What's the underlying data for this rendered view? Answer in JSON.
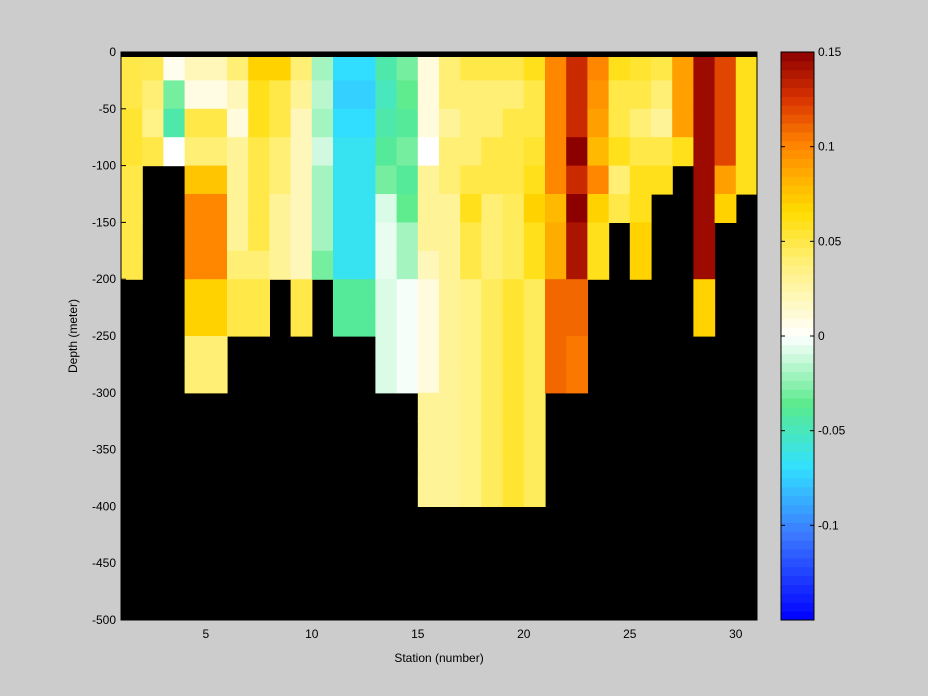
{
  "chart_data": {
    "type": "heatmap",
    "xlabel": "Station (number)",
    "ylabel": "Depth (meter)",
    "xlim": [
      1,
      31
    ],
    "ylim": [
      -500,
      0
    ],
    "x_ticks": [
      5,
      10,
      15,
      20,
      25,
      30
    ],
    "y_ticks": [
      0,
      -50,
      -100,
      -150,
      -200,
      -250,
      -300,
      -350,
      -400,
      -450,
      -500
    ],
    "colorbar": {
      "clim": [
        -0.15,
        0.15
      ],
      "ticks": [
        0.15,
        0.1,
        0.05,
        0,
        -0.05,
        -0.1
      ],
      "tick_labels": [
        "0.15",
        "0.1",
        "0.05",
        "0",
        "-0.05",
        "-0.1"
      ]
    },
    "depth_levels": [
      -12.5,
      -37.5,
      -62.5,
      -87.5,
      -112.5,
      -137.5,
      -162.5,
      -187.5,
      -212.5,
      -237.5,
      -262.5,
      -287.5,
      -312.5,
      -337.5,
      -362.5,
      -387.5
    ],
    "missing_color": "#000000",
    "stations": [
      {
        "x": 1.5,
        "values": [
          0.05,
          0.05,
          0.055,
          0.055,
          0.05,
          0.05,
          0.05,
          0.05
        ]
      },
      {
        "x": 2.5,
        "values": [
          0.048,
          0.04,
          0.035,
          0.05
        ]
      },
      {
        "x": 3.5,
        "values": [
          0.005,
          -0.03,
          -0.045,
          0.0
        ]
      },
      {
        "x": 4.5,
        "values": [
          0.02,
          0.008,
          0.05,
          0.04,
          0.075,
          0.1,
          0.1,
          0.1,
          0.07,
          0.07,
          0.04,
          0.04
        ]
      },
      {
        "x": 5.5,
        "values": [
          0.02,
          0.008,
          0.05,
          0.04,
          0.075,
          0.1,
          0.1,
          0.1,
          0.07,
          0.07,
          0.04,
          0.04
        ]
      },
      {
        "x": 6.5,
        "values": [
          0.04,
          0.02,
          0.01,
          0.03,
          0.03,
          0.03,
          0.03,
          0.04,
          0.05,
          0.05
        ]
      },
      {
        "x": 7.5,
        "values": [
          0.07,
          0.06,
          0.06,
          0.05,
          0.05,
          0.05,
          0.05,
          0.04,
          0.05,
          0.05
        ]
      },
      {
        "x": 8.5,
        "values": [
          0.07,
          0.05,
          0.05,
          0.04,
          0.04,
          0.03,
          0.03,
          0.03
        ]
      },
      {
        "x": 9.5,
        "values": [
          0.04,
          0.03,
          0.02,
          0.02,
          0.02,
          0.02,
          0.02,
          0.02,
          0.05,
          0.05
        ]
      },
      {
        "x": 10.5,
        "values": [
          -0.02,
          -0.015,
          -0.02,
          -0.01,
          -0.02,
          -0.02,
          -0.02,
          -0.03
        ]
      },
      {
        "x": 11.5,
        "values": [
          -0.07,
          -0.075,
          -0.07,
          -0.065,
          -0.065,
          -0.065,
          -0.065,
          -0.065,
          -0.04,
          -0.04
        ]
      },
      {
        "x": 12.5,
        "values": [
          -0.07,
          -0.075,
          -0.07,
          -0.065,
          -0.065,
          -0.065,
          -0.065,
          -0.065,
          -0.04,
          -0.04
        ]
      },
      {
        "x": 13.5,
        "values": [
          -0.045,
          -0.05,
          -0.045,
          -0.04,
          -0.03,
          -0.008,
          -0.005,
          -0.005,
          -0.008,
          -0.008,
          -0.008,
          -0.008
        ]
      },
      {
        "x": 14.5,
        "values": [
          -0.03,
          -0.035,
          -0.04,
          -0.03,
          -0.04,
          -0.035,
          -0.02,
          -0.02,
          -0.002,
          -0.002,
          -0.002,
          -0.002
        ]
      },
      {
        "x": 15.5,
        "values": [
          0.01,
          0.01,
          0.01,
          0.0,
          0.03,
          0.03,
          0.03,
          0.02,
          0.01,
          0.01,
          0.01,
          0.01,
          0.03,
          0.03,
          0.03,
          0.03
        ]
      },
      {
        "x": 16.5,
        "values": [
          0.04,
          0.04,
          0.03,
          0.04,
          0.04,
          0.03,
          0.03,
          0.03,
          0.03,
          0.03,
          0.03,
          0.03,
          0.03,
          0.03,
          0.03,
          0.03
        ]
      },
      {
        "x": 17.5,
        "values": [
          0.05,
          0.04,
          0.04,
          0.04,
          0.05,
          0.06,
          0.05,
          0.05,
          0.035,
          0.035,
          0.035,
          0.035,
          0.035,
          0.035,
          0.035,
          0.035
        ]
      },
      {
        "x": 18.5,
        "values": [
          0.05,
          0.04,
          0.04,
          0.05,
          0.05,
          0.04,
          0.04,
          0.04,
          0.045,
          0.045,
          0.045,
          0.045,
          0.045,
          0.045,
          0.045,
          0.045
        ]
      },
      {
        "x": 19.5,
        "values": [
          0.05,
          0.04,
          0.05,
          0.05,
          0.05,
          0.045,
          0.045,
          0.045,
          0.055,
          0.055,
          0.055,
          0.055,
          0.055,
          0.055,
          0.055,
          0.055
        ]
      },
      {
        "x": 20.5,
        "values": [
          0.06,
          0.05,
          0.05,
          0.055,
          0.06,
          0.07,
          0.06,
          0.06,
          0.045,
          0.045,
          0.045,
          0.045,
          0.045,
          0.045,
          0.045,
          0.045
        ]
      },
      {
        "x": 21.5,
        "values": [
          0.1,
          0.1,
          0.1,
          0.1,
          0.1,
          0.08,
          0.085,
          0.085,
          0.11,
          0.11,
          0.11,
          0.11
        ]
      },
      {
        "x": 22.5,
        "values": [
          0.13,
          0.13,
          0.13,
          0.15,
          0.13,
          0.15,
          0.14,
          0.14,
          0.11,
          0.11,
          0.105,
          0.105
        ]
      },
      {
        "x": 23.5,
        "values": [
          0.1,
          0.095,
          0.09,
          0.08,
          0.1,
          0.07,
          0.06,
          0.06
        ]
      },
      {
        "x": 24.5,
        "values": [
          0.06,
          0.05,
          0.05,
          0.06,
          0.04,
          0.05
        ]
      },
      {
        "x": 25.5,
        "values": [
          0.055,
          0.05,
          0.04,
          0.05,
          0.06,
          0.06,
          0.07,
          0.07
        ]
      },
      {
        "x": 26.5,
        "values": [
          0.05,
          0.04,
          0.03,
          0.05,
          0.06
        ]
      },
      {
        "x": 27.5,
        "values": [
          0.09,
          0.09,
          0.09,
          0.06
        ]
      },
      {
        "x": 28.5,
        "values": [
          0.145,
          0.145,
          0.145,
          0.145,
          0.145,
          0.145,
          0.145,
          0.145,
          0.07,
          0.07
        ]
      },
      {
        "x": 29.5,
        "values": [
          0.12,
          0.12,
          0.12,
          0.12,
          0.09,
          0.07
        ]
      },
      {
        "x": 30.5,
        "values": [
          0.06,
          0.06,
          0.06,
          0.06,
          0.06
        ]
      }
    ]
  }
}
